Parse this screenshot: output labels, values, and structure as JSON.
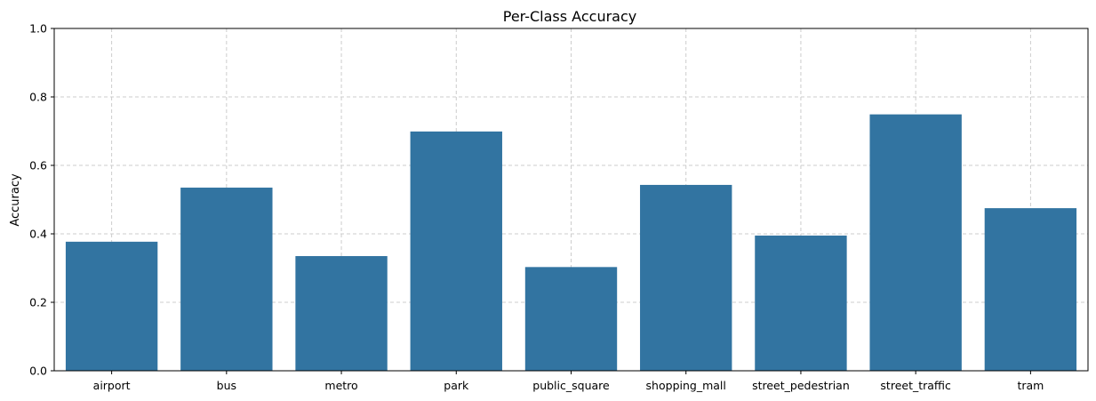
{
  "chart_data": {
    "type": "bar",
    "title": "Per-Class Accuracy",
    "xlabel": "",
    "ylabel": "Accuracy",
    "categories": [
      "airport",
      "bus",
      "metro",
      "park",
      "public_square",
      "shopping_mall",
      "street_pedestrian",
      "street_traffic",
      "tram"
    ],
    "values": [
      0.377,
      0.535,
      0.335,
      0.699,
      0.303,
      0.543,
      0.395,
      0.749,
      0.475
    ],
    "ylim": [
      0,
      1.0
    ],
    "yticks": [
      "0.0",
      "0.2",
      "0.4",
      "0.6",
      "0.8",
      "1.0"
    ],
    "grid": true,
    "bar_color": "#3274a1",
    "grid_color": "#cccccc"
  }
}
